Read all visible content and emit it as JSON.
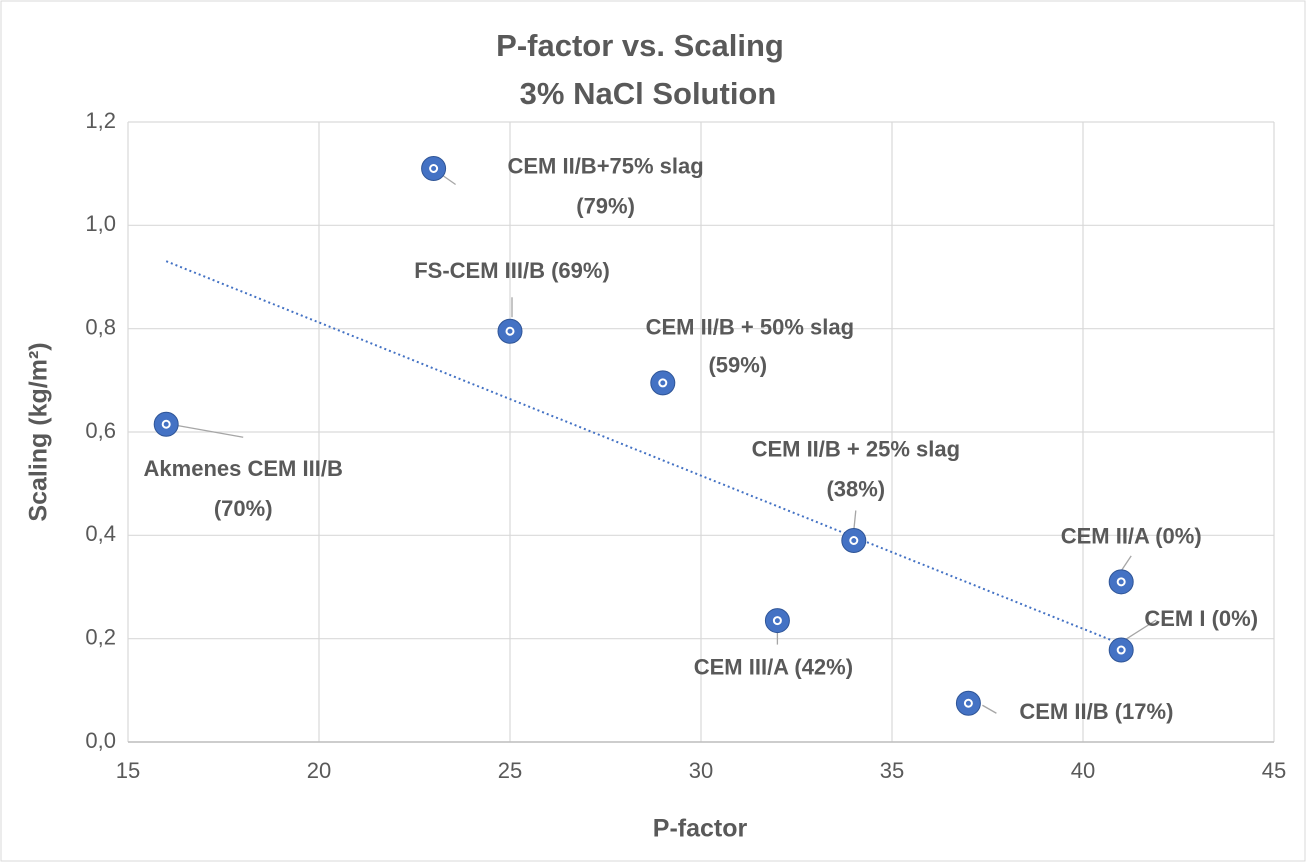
{
  "chart_data": {
    "type": "scatter",
    "title": [
      "P-factor vs. Scaling",
      "3% NaCl Solution"
    ],
    "x_label": "P-factor",
    "y_label": "Scaling (kg/m²)",
    "x": [
      16,
      23,
      25,
      29,
      34,
      32,
      41,
      41,
      37
    ],
    "values": [
      0.615,
      1.11,
      0.795,
      0.695,
      0.39,
      0.235,
      0.31,
      0.178,
      0.075
    ],
    "point_labels": [
      [
        "Akmenes CEM III/B",
        "(70%)"
      ],
      [
        "CEM II/B+75% slag",
        "(79%)"
      ],
      [
        "FS-CEM III/B (69%)"
      ],
      [
        "CEM II/B + 50% slag",
        "(59%)"
      ],
      [
        "CEM II/B + 25% slag",
        "(38%)"
      ],
      [
        "CEM III/A (42%)"
      ],
      [
        "CEM II/A (0%)"
      ],
      [
        "CEM I (0%)"
      ],
      [
        "CEM II/B (17%)"
      ]
    ],
    "color": "#4472c4",
    "trendline": "linear",
    "xlim": [
      15,
      45
    ],
    "xticks": [
      15,
      20,
      25,
      30,
      35,
      40,
      45
    ],
    "ylim": [
      0,
      1.2
    ],
    "yticks": [
      {
        "value": 0,
        "label": "0,0"
      },
      {
        "value": 0.2,
        "label": "0,2"
      },
      {
        "value": 0.4,
        "label": "0,4"
      },
      {
        "value": 0.6,
        "label": "0,6"
      },
      {
        "value": 0.8,
        "label": "0,8"
      },
      {
        "value": 1.0,
        "label": "1,0"
      },
      {
        "value": 1.2,
        "label": "1,2"
      }
    ],
    "grid": true
  }
}
